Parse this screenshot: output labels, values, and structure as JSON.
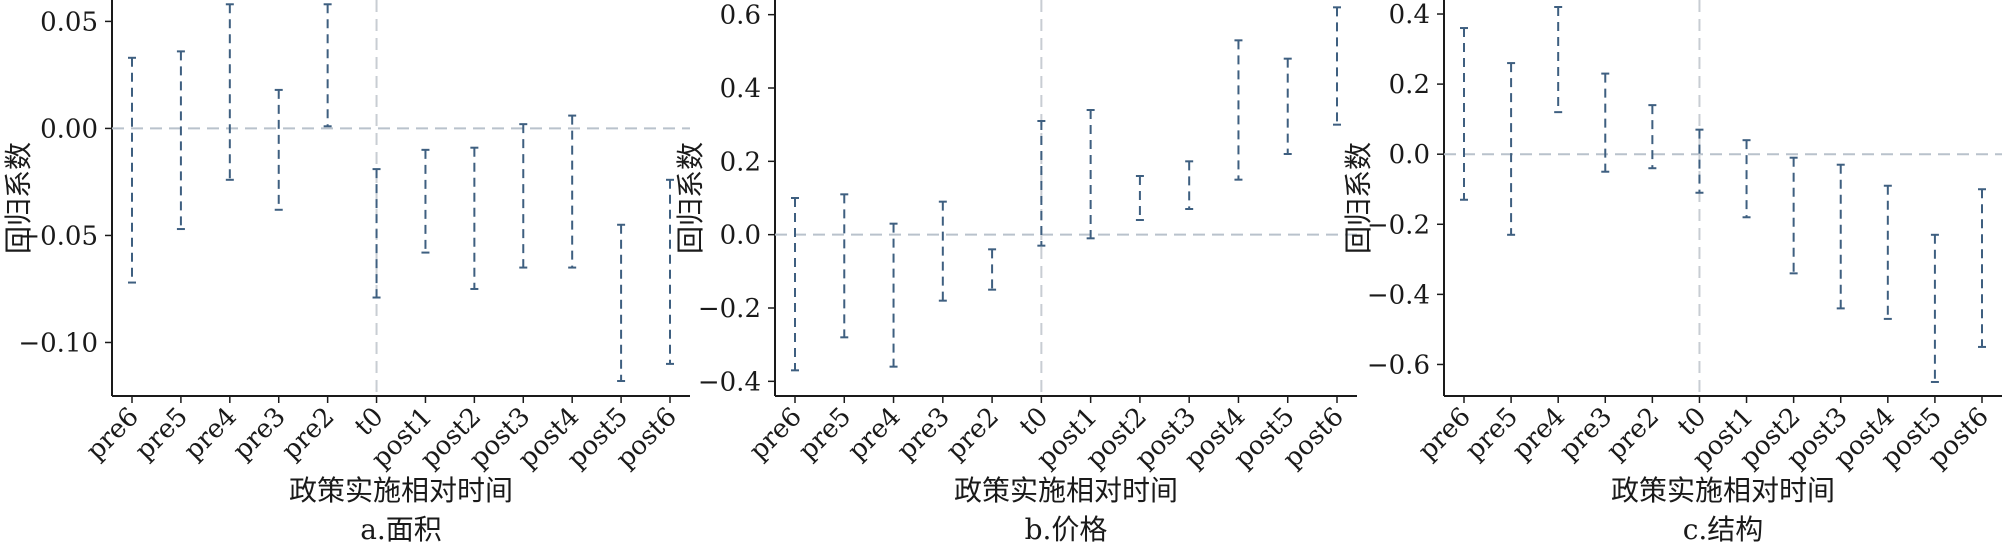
{
  "chart_data": [
    {
      "type": "errorbar",
      "caption": "a.面积",
      "xlabel": "政策实施相对时间",
      "ylabel": "回归系数",
      "categories": [
        "pre6",
        "pre5",
        "pre4",
        "pre3",
        "pre2",
        "t0",
        "post1",
        "post2",
        "post3",
        "post4",
        "post5",
        "post6"
      ],
      "lower": [
        -0.072,
        -0.047,
        -0.024,
        -0.038,
        0.001,
        -0.079,
        -0.058,
        -0.075,
        -0.065,
        -0.065,
        -0.118,
        -0.11
      ],
      "upper": [
        0.033,
        0.036,
        0.058,
        0.018,
        0.058,
        -0.019,
        -0.01,
        -0.009,
        0.002,
        0.006,
        -0.045,
        -0.024
      ],
      "yticks": [
        0.05,
        0.0,
        -0.05,
        -0.1
      ],
      "ytick_labels": [
        "0.05",
        "0.00",
        "−0.05",
        "−0.10"
      ],
      "ylim": [
        -0.125,
        0.06
      ],
      "reference_y": 0,
      "reference_x": "t0"
    },
    {
      "type": "errorbar",
      "caption": "b.价格",
      "xlabel": "政策实施相对时间",
      "ylabel": "回归系数",
      "categories": [
        "pre6",
        "pre5",
        "pre4",
        "pre3",
        "pre2",
        "t0",
        "post1",
        "post2",
        "post3",
        "post4",
        "post5",
        "post6"
      ],
      "lower": [
        -0.37,
        -0.28,
        -0.36,
        -0.18,
        -0.15,
        -0.03,
        -0.01,
        0.04,
        0.07,
        0.15,
        0.22,
        0.3
      ],
      "upper": [
        0.1,
        0.11,
        0.03,
        0.09,
        -0.04,
        0.31,
        0.34,
        0.16,
        0.2,
        0.53,
        0.48,
        0.62
      ],
      "yticks": [
        0.6,
        0.4,
        0.2,
        0.0,
        -0.2,
        -0.4
      ],
      "ytick_labels": [
        "0.6",
        "0.4",
        "0.2",
        "0.0",
        "−0.2",
        "−0.4"
      ],
      "ylim": [
        -0.44,
        0.64
      ],
      "reference_y": 0,
      "reference_x": "t0"
    },
    {
      "type": "errorbar",
      "caption": "c.结构",
      "xlabel": "政策实施相对时间",
      "ylabel": "回归系数",
      "categories": [
        "pre6",
        "pre5",
        "pre4",
        "pre3",
        "pre2",
        "t0",
        "post1",
        "post2",
        "post3",
        "post4",
        "post5",
        "post6"
      ],
      "lower": [
        -0.13,
        -0.23,
        0.12,
        -0.05,
        -0.04,
        -0.11,
        -0.18,
        -0.34,
        -0.44,
        -0.47,
        -0.65,
        -0.55
      ],
      "upper": [
        0.36,
        0.26,
        0.42,
        0.23,
        0.14,
        0.07,
        0.04,
        -0.01,
        -0.03,
        -0.09,
        -0.23,
        -0.1
      ],
      "yticks": [
        0.4,
        0.2,
        0.0,
        -0.2,
        -0.4,
        -0.6
      ],
      "ytick_labels": [
        "0.4",
        "0.2",
        "0.0",
        "−0.2",
        "−0.4",
        "−0.6"
      ],
      "ylim": [
        -0.69,
        0.44
      ],
      "reference_y": 0,
      "reference_x": "t0"
    }
  ]
}
